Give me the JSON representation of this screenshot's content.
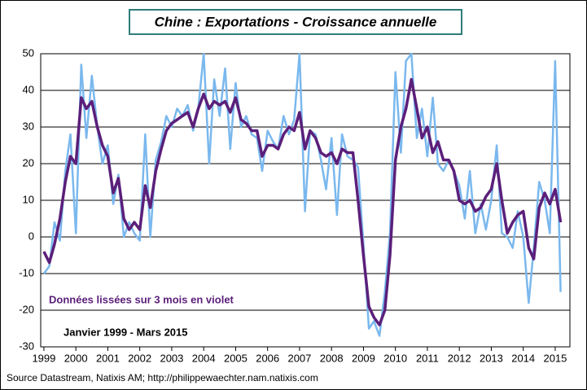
{
  "chart_data": {
    "type": "line",
    "title": "Chine : Exportations  - Croissance annuelle",
    "annotations": [
      "Données lissées sur 3 mois en violet",
      "Janvier 1999  - Mars 2015"
    ],
    "source": "Source Datastream, Natixis AM; http://philippewaechter.nam.natixis.com",
    "x": [
      1999,
      1999.17,
      1999.33,
      1999.5,
      1999.67,
      1999.83,
      2000,
      2000.17,
      2000.33,
      2000.5,
      2000.67,
      2000.83,
      2001,
      2001.17,
      2001.33,
      2001.5,
      2001.67,
      2001.83,
      2002,
      2002.17,
      2002.33,
      2002.5,
      2002.67,
      2002.83,
      2003,
      2003.17,
      2003.33,
      2003.5,
      2003.67,
      2003.83,
      2004,
      2004.17,
      2004.33,
      2004.5,
      2004.67,
      2004.83,
      2005,
      2005.17,
      2005.33,
      2005.5,
      2005.67,
      2005.83,
      2006,
      2006.17,
      2006.33,
      2006.5,
      2006.67,
      2006.83,
      2007,
      2007.17,
      2007.33,
      2007.5,
      2007.67,
      2007.83,
      2008,
      2008.17,
      2008.33,
      2008.5,
      2008.67,
      2008.83,
      2009,
      2009.17,
      2009.33,
      2009.5,
      2009.67,
      2009.83,
      2010,
      2010.17,
      2010.33,
      2010.5,
      2010.67,
      2010.83,
      2011,
      2011.17,
      2011.33,
      2011.5,
      2011.67,
      2011.83,
      2012,
      2012.17,
      2012.33,
      2012.5,
      2012.67,
      2012.83,
      2013,
      2013.17,
      2013.33,
      2013.5,
      2013.67,
      2013.83,
      2014,
      2014.17,
      2014.33,
      2014.5,
      2014.67,
      2014.83,
      2015,
      2015.17
    ],
    "series": [
      {
        "color": "#7ab8ee",
        "width": 2.5,
        "values": [
          -10,
          -8,
          4,
          -1,
          18,
          28,
          1,
          47,
          27,
          44,
          30,
          20,
          25,
          9,
          17,
          0,
          4,
          1,
          -1,
          28,
          0,
          21,
          26,
          33,
          30,
          35,
          33,
          36,
          29,
          35,
          50,
          20,
          43,
          33,
          46,
          24,
          42,
          30,
          33,
          28,
          27,
          18,
          29,
          26,
          24,
          33,
          28,
          32,
          50,
          7,
          29,
          28,
          21,
          13,
          27,
          6,
          28,
          22,
          21,
          19,
          -2,
          -25,
          -23,
          -27,
          -15,
          1,
          45,
          23,
          48,
          50,
          27,
          35,
          22,
          38,
          20,
          18,
          21,
          18,
          14,
          5,
          18,
          1,
          9,
          2,
          10,
          25,
          1,
          0,
          -3,
          7,
          0,
          -18,
          -3,
          15,
          10,
          1,
          48,
          -15
        ]
      },
      {
        "color": "#5b1f7a",
        "width": 3.5,
        "values": [
          -4,
          -7,
          -2,
          5,
          15,
          22,
          20,
          38,
          35,
          37,
          30,
          25,
          22,
          12,
          16,
          5,
          2,
          4,
          2,
          14,
          8,
          18,
          24,
          29,
          31,
          32,
          33,
          34,
          30,
          35,
          39,
          35,
          37,
          36,
          37,
          34,
          38,
          32,
          31,
          29,
          29,
          22,
          25,
          25,
          24,
          28,
          30,
          29,
          34,
          24,
          29,
          27,
          23,
          22,
          23,
          20,
          24,
          23,
          23,
          10,
          -5,
          -19,
          -22,
          -24,
          -20,
          -5,
          21,
          30,
          35,
          43,
          35,
          27,
          30,
          23,
          26,
          21,
          21,
          18,
          10,
          9,
          10,
          7,
          8,
          11,
          13,
          20,
          10,
          1,
          4,
          6,
          7,
          -3,
          -6,
          8,
          12,
          9,
          13,
          4
        ]
      }
    ],
    "xlim": [
      1998.9,
      2015.46
    ],
    "xticks": [
      1999,
      2000,
      2001,
      2002,
      2003,
      2004,
      2005,
      2006,
      2007,
      2008,
      2009,
      2010,
      2011,
      2012,
      2013,
      2014,
      2015
    ],
    "ylim": [
      -30,
      50
    ],
    "yticks": [
      -30,
      -20,
      -10,
      0,
      10,
      20,
      30,
      40,
      50
    ],
    "grid": true
  }
}
